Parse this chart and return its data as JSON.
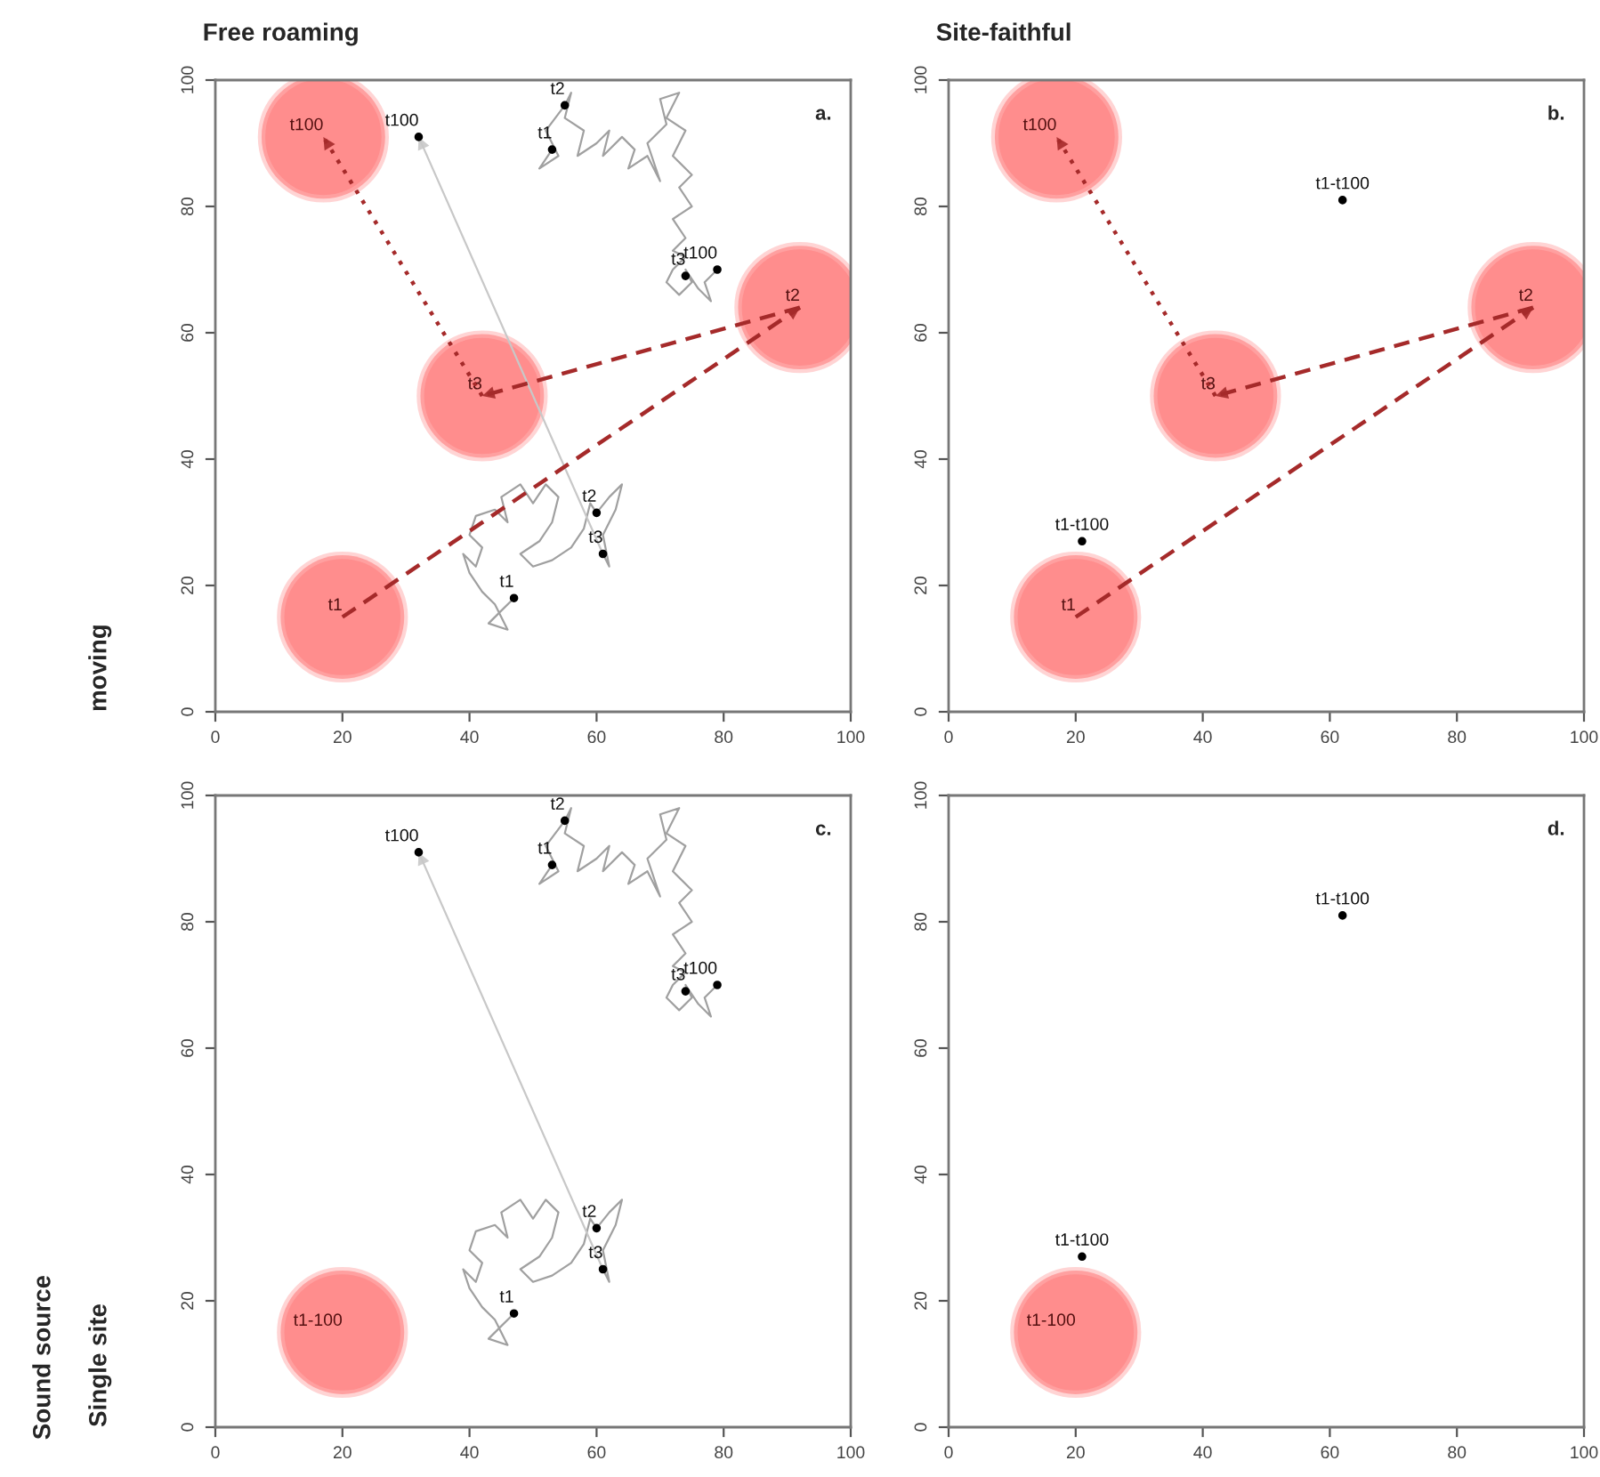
{
  "chart_data": [
    {
      "type": "scatter",
      "title": "Free roaming",
      "ylabel": "moving",
      "annotations": [
        "a."
      ],
      "xlim": [
        0,
        100
      ],
      "ylim": [
        0,
        100
      ],
      "xticks": [
        0,
        20,
        40,
        60,
        80,
        100
      ],
      "yticks": [
        0,
        20,
        40,
        60,
        80,
        100
      ],
      "series": [
        {
          "type": "line",
          "color": "#a0a0a0",
          "x": [
            53,
            51,
            54,
            52,
            55,
            56,
            55,
            58,
            57,
            60,
            62,
            61,
            64,
            66,
            65,
            68,
            70,
            68,
            71,
            70,
            73,
            71,
            74,
            72,
            75,
            73,
            75,
            72,
            74,
            72,
            74,
            72,
            71,
            73,
            75,
            74,
            76,
            78,
            77,
            79
          ],
          "values": [
            89,
            86,
            88,
            92,
            96,
            98,
            94,
            92,
            88,
            90,
            92,
            88,
            91,
            89,
            86,
            88,
            84,
            90,
            93,
            97,
            98,
            94,
            92,
            88,
            85,
            83,
            80,
            78,
            75,
            73,
            72,
            70,
            68,
            66,
            68,
            70,
            67,
            65,
            68,
            70
          ]
        },
        {
          "type": "line",
          "color": "#a0a0a0",
          "x": [
            47,
            45,
            43,
            46,
            44,
            42,
            40,
            39,
            41,
            42,
            40,
            41,
            44,
            46,
            45,
            48,
            50,
            52,
            54,
            53,
            51,
            48,
            50,
            53,
            56,
            58,
            59,
            60,
            62,
            64,
            63,
            61,
            62,
            61
          ],
          "values": [
            18,
            16,
            14,
            13,
            17,
            19,
            22,
            25,
            23,
            26,
            28,
            31,
            32,
            30,
            34,
            36,
            33,
            36,
            34,
            30,
            27,
            25,
            23,
            24,
            26,
            29,
            33,
            31.5,
            34,
            36,
            32,
            28,
            23,
            25
          ]
        },
        {
          "type": "line",
          "color": "#c8c8c8",
          "x": [
            61,
            32
          ],
          "values": [
            25,
            91
          ]
        },
        {
          "type": "line",
          "color": "#a52a2a",
          "line_style": "dashed",
          "x": [
            20,
            92
          ],
          "values": [
            15,
            64
          ]
        },
        {
          "type": "line",
          "color": "#a52a2a",
          "line_style": "dashed",
          "x": [
            92,
            42
          ],
          "values": [
            64,
            50
          ]
        },
        {
          "type": "line",
          "color": "#a52a2a",
          "line_style": "dotted",
          "x": [
            42,
            17
          ],
          "values": [
            50,
            91
          ]
        },
        {
          "type": "bubble",
          "color": "#ff3030",
          "x": [
            20,
            92,
            42,
            17
          ],
          "values": [
            15,
            64,
            50,
            91
          ],
          "sizes": [
            1,
            1,
            1,
            1
          ],
          "value_labels": [
            "t1",
            "t2",
            "t3",
            "t100"
          ]
        },
        {
          "color": "#000000",
          "x": [
            53,
            55,
            74,
            79,
            47,
            60,
            61,
            32
          ],
          "values": [
            89,
            96,
            69,
            70,
            18,
            31.5,
            25,
            91
          ],
          "value_labels": [
            "t1",
            "t2",
            "t3",
            "t100",
            "t1",
            "t2",
            "t3",
            "t100"
          ]
        }
      ]
    },
    {
      "type": "scatter",
      "title": "Site-faithful",
      "annotations": [
        "b."
      ],
      "xlim": [
        0,
        100
      ],
      "ylim": [
        0,
        100
      ],
      "xticks": [
        0,
        20,
        40,
        60,
        80,
        100
      ],
      "yticks": [
        0,
        20,
        40,
        60,
        80,
        100
      ],
      "series": [
        {
          "type": "line",
          "color": "#a52a2a",
          "line_style": "dashed",
          "x": [
            20,
            92
          ],
          "values": [
            15,
            64
          ]
        },
        {
          "type": "line",
          "color": "#a52a2a",
          "line_style": "dashed",
          "x": [
            92,
            42
          ],
          "values": [
            64,
            50
          ]
        },
        {
          "type": "line",
          "color": "#a52a2a",
          "line_style": "dotted",
          "x": [
            42,
            17
          ],
          "values": [
            50,
            91
          ]
        },
        {
          "type": "bubble",
          "color": "#ff3030",
          "x": [
            20,
            92,
            42,
            17
          ],
          "values": [
            15,
            64,
            50,
            91
          ],
          "sizes": [
            1,
            1,
            1,
            1
          ],
          "value_labels": [
            "t1",
            "t2",
            "t3",
            "t100"
          ]
        },
        {
          "color": "#000000",
          "x": [
            62,
            21
          ],
          "values": [
            81,
            27
          ],
          "value_labels": [
            "t1-t100",
            "t1-t100"
          ]
        }
      ]
    },
    {
      "type": "scatter",
      "ylabel": "Single site",
      "annotations": [
        "c.",
        "Sound source"
      ],
      "xlim": [
        0,
        100
      ],
      "ylim": [
        0,
        100
      ],
      "xticks": [
        0,
        20,
        40,
        60,
        80,
        100
      ],
      "yticks": [
        0,
        20,
        40,
        60,
        80,
        100
      ],
      "series": [
        {
          "type": "line",
          "color": "#a0a0a0",
          "x": [
            53,
            51,
            54,
            52,
            55,
            56,
            55,
            58,
            57,
            60,
            62,
            61,
            64,
            66,
            65,
            68,
            70,
            68,
            71,
            70,
            73,
            71,
            74,
            72,
            75,
            73,
            75,
            72,
            74,
            72,
            74,
            72,
            71,
            73,
            75,
            74,
            76,
            78,
            77,
            79
          ],
          "values": [
            89,
            86,
            88,
            92,
            96,
            98,
            94,
            92,
            88,
            90,
            92,
            88,
            91,
            89,
            86,
            88,
            84,
            90,
            93,
            97,
            98,
            94,
            92,
            88,
            85,
            83,
            80,
            78,
            75,
            73,
            72,
            70,
            68,
            66,
            68,
            70,
            67,
            65,
            68,
            70
          ]
        },
        {
          "type": "line",
          "color": "#a0a0a0",
          "x": [
            47,
            45,
            43,
            46,
            44,
            42,
            40,
            39,
            41,
            42,
            40,
            41,
            44,
            46,
            45,
            48,
            50,
            52,
            54,
            53,
            51,
            48,
            50,
            53,
            56,
            58,
            59,
            60,
            62,
            64,
            63,
            61,
            62,
            61
          ],
          "values": [
            18,
            16,
            14,
            13,
            17,
            19,
            22,
            25,
            23,
            26,
            28,
            31,
            32,
            30,
            34,
            36,
            33,
            36,
            34,
            30,
            27,
            25,
            23,
            24,
            26,
            29,
            33,
            31.5,
            34,
            36,
            32,
            28,
            23,
            25
          ]
        },
        {
          "type": "line",
          "color": "#c8c8c8",
          "x": [
            61,
            32
          ],
          "values": [
            25,
            91
          ]
        },
        {
          "type": "bubble",
          "color": "#ff3030",
          "x": [
            20
          ],
          "values": [
            15
          ],
          "sizes": [
            1
          ],
          "value_labels": [
            "t1-100"
          ]
        },
        {
          "color": "#000000",
          "x": [
            53,
            55,
            74,
            79,
            47,
            60,
            61,
            32
          ],
          "values": [
            89,
            96,
            69,
            70,
            18,
            31.5,
            25,
            91
          ],
          "value_labels": [
            "t1",
            "t2",
            "t3",
            "t100",
            "t1",
            "t2",
            "t3",
            "t100"
          ]
        }
      ]
    },
    {
      "type": "scatter",
      "annotations": [
        "d."
      ],
      "xlim": [
        0,
        100
      ],
      "ylim": [
        0,
        100
      ],
      "xticks": [
        0,
        20,
        40,
        60,
        80,
        100
      ],
      "yticks": [
        0,
        20,
        40,
        60,
        80,
        100
      ],
      "series": [
        {
          "type": "bubble",
          "color": "#ff3030",
          "x": [
            20
          ],
          "values": [
            15
          ],
          "sizes": [
            1
          ],
          "value_labels": [
            "t1-100"
          ]
        },
        {
          "color": "#000000",
          "x": [
            62,
            21
          ],
          "values": [
            81,
            27
          ],
          "value_labels": [
            "t1-t100",
            "t1-t100"
          ]
        }
      ]
    }
  ]
}
